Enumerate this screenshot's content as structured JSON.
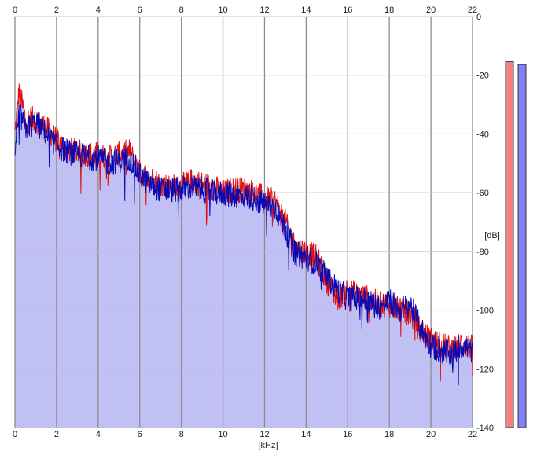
{
  "chart_data": {
    "type": "area",
    "title": "",
    "xlabel": "[kHz]",
    "ylabel": "[dB]",
    "xlim": [
      0,
      22
    ],
    "ylim": [
      -140,
      0
    ],
    "x_ticks": [
      0,
      2,
      4,
      6,
      8,
      10,
      12,
      14,
      16,
      18,
      20,
      22
    ],
    "y_ticks": [
      0,
      -20,
      -40,
      -60,
      -80,
      -100,
      -120,
      -140
    ],
    "x_tick_labels": [
      "0",
      "2",
      "4",
      "6",
      "8",
      "10",
      "12",
      "14",
      "16",
      "18",
      "20",
      "22"
    ],
    "y_tick_labels": [
      "0",
      "-20",
      "-40",
      "-60",
      "-80",
      "-100",
      "-120",
      "-140"
    ],
    "grid": true,
    "fill_color": "#c0c0f4",
    "series": [
      {
        "color": "#e01010",
        "x": [
          0,
          0.2,
          0.5,
          1,
          1.5,
          2,
          2.5,
          3,
          3.5,
          4,
          4.5,
          5,
          5.5,
          6,
          6.5,
          7,
          7.5,
          8,
          8.5,
          9,
          9.5,
          10,
          10.5,
          11,
          11.5,
          12,
          12.5,
          13,
          13.5,
          14,
          14.5,
          15,
          15.5,
          16,
          16.5,
          17,
          17.5,
          18,
          18.5,
          19,
          19.5,
          20,
          20.5,
          21,
          21.5,
          22
        ],
        "y": [
          -40,
          -25,
          -35,
          -35,
          -38,
          -42,
          -45,
          -46,
          -47,
          -47,
          -48,
          -47,
          -46,
          -53,
          -55,
          -57,
          -58,
          -58,
          -56,
          -57,
          -58,
          -60,
          -59,
          -59,
          -60,
          -62,
          -63,
          -70,
          -79,
          -80,
          -82,
          -90,
          -96,
          -93,
          -95,
          -96,
          -98,
          -98,
          -100,
          -101,
          -107,
          -110,
          -112,
          -113,
          -111,
          -113
        ]
      },
      {
        "color": "#0a0ab4",
        "x": [
          0,
          0.2,
          0.5,
          1,
          1.5,
          2,
          2.5,
          3,
          3.5,
          4,
          4.5,
          5,
          5.5,
          6,
          6.5,
          7,
          7.5,
          8,
          8.5,
          9,
          9.5,
          10,
          10.5,
          11,
          11.5,
          12,
          12.5,
          13,
          13.5,
          14,
          14.5,
          15,
          15.5,
          16,
          16.5,
          17,
          17.5,
          18,
          18.5,
          19,
          19.5,
          20,
          20.5,
          21,
          21.5,
          22
        ],
        "y": [
          -45,
          -33,
          -38,
          -36,
          -40,
          -44,
          -46,
          -47,
          -48,
          -48,
          -50,
          -49,
          -48,
          -54,
          -57,
          -59,
          -59,
          -59,
          -58,
          -59,
          -60,
          -60,
          -61,
          -61,
          -62,
          -64,
          -65,
          -72,
          -81,
          -82,
          -84,
          -89,
          -93,
          -96,
          -96,
          -97,
          -99,
          -97,
          -100,
          -98,
          -106,
          -112,
          -114,
          -115,
          -112,
          -114
        ]
      }
    ],
    "meters": [
      {
        "color": "#f58282",
        "level_db": -10
      },
      {
        "color": "#8282f5",
        "level_db": -11
      }
    ]
  }
}
